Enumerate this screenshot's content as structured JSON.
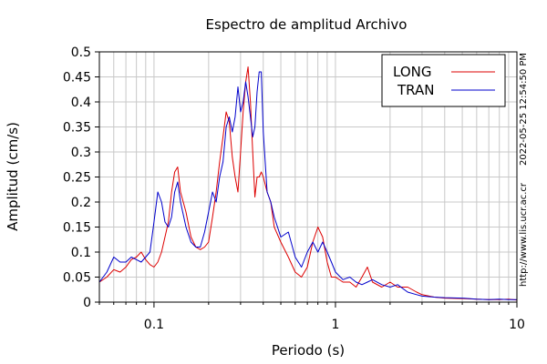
{
  "chart_data": {
    "type": "line",
    "title": "Espectro de amplitud Archivo",
    "xlabel": "Periodo (s)",
    "ylabel": "Amplitud (cm/s)",
    "x_scale": "log",
    "xlim": [
      0.05,
      10
    ],
    "ylim": [
      0,
      0.5
    ],
    "grid": true,
    "legend_position": "top-right",
    "x_ticks": [
      {
        "value": 0.1,
        "label": "0.1"
      },
      {
        "value": 1,
        "label": "1"
      },
      {
        "value": 10,
        "label": "10"
      }
    ],
    "y_ticks": [
      {
        "value": 0,
        "label": "0"
      },
      {
        "value": 0.05,
        "label": "0.05"
      },
      {
        "value": 0.1,
        "label": "0.1"
      },
      {
        "value": 0.15,
        "label": "0.15"
      },
      {
        "value": 0.2,
        "label": "0.2"
      },
      {
        "value": 0.25,
        "label": "0.25"
      },
      {
        "value": 0.3,
        "label": "0.3"
      },
      {
        "value": 0.35,
        "label": "0.35"
      },
      {
        "value": 0.4,
        "label": "0.4"
      },
      {
        "value": 0.45,
        "label": "0.45"
      },
      {
        "value": 0.5,
        "label": "0.5"
      }
    ],
    "series": [
      {
        "name": "LONG",
        "color": "#dd0000",
        "points": [
          [
            0.05,
            0.04
          ],
          [
            0.055,
            0.05
          ],
          [
            0.06,
            0.065
          ],
          [
            0.065,
            0.06
          ],
          [
            0.07,
            0.07
          ],
          [
            0.075,
            0.085
          ],
          [
            0.08,
            0.09
          ],
          [
            0.085,
            0.1
          ],
          [
            0.09,
            0.085
          ],
          [
            0.095,
            0.075
          ],
          [
            0.1,
            0.07
          ],
          [
            0.105,
            0.08
          ],
          [
            0.11,
            0.1
          ],
          [
            0.12,
            0.16
          ],
          [
            0.125,
            0.22
          ],
          [
            0.13,
            0.26
          ],
          [
            0.135,
            0.27
          ],
          [
            0.14,
            0.22
          ],
          [
            0.15,
            0.18
          ],
          [
            0.16,
            0.13
          ],
          [
            0.17,
            0.11
          ],
          [
            0.18,
            0.105
          ],
          [
            0.19,
            0.11
          ],
          [
            0.2,
            0.12
          ],
          [
            0.21,
            0.17
          ],
          [
            0.22,
            0.22
          ],
          [
            0.23,
            0.28
          ],
          [
            0.24,
            0.33
          ],
          [
            0.25,
            0.38
          ],
          [
            0.26,
            0.36
          ],
          [
            0.27,
            0.29
          ],
          [
            0.28,
            0.25
          ],
          [
            0.29,
            0.22
          ],
          [
            0.3,
            0.3
          ],
          [
            0.31,
            0.38
          ],
          [
            0.32,
            0.44
          ],
          [
            0.33,
            0.47
          ],
          [
            0.34,
            0.4
          ],
          [
            0.35,
            0.3
          ],
          [
            0.36,
            0.21
          ],
          [
            0.37,
            0.25
          ],
          [
            0.38,
            0.25
          ],
          [
            0.39,
            0.26
          ],
          [
            0.4,
            0.25
          ],
          [
            0.42,
            0.22
          ],
          [
            0.44,
            0.2
          ],
          [
            0.46,
            0.15
          ],
          [
            0.5,
            0.12
          ],
          [
            0.55,
            0.09
          ],
          [
            0.6,
            0.06
          ],
          [
            0.65,
            0.05
          ],
          [
            0.7,
            0.07
          ],
          [
            0.75,
            0.12
          ],
          [
            0.8,
            0.15
          ],
          [
            0.85,
            0.13
          ],
          [
            0.9,
            0.08
          ],
          [
            0.95,
            0.05
          ],
          [
            1.0,
            0.05
          ],
          [
            1.1,
            0.04
          ],
          [
            1.2,
            0.04
          ],
          [
            1.3,
            0.03
          ],
          [
            1.4,
            0.05
          ],
          [
            1.5,
            0.07
          ],
          [
            1.6,
            0.04
          ],
          [
            1.8,
            0.03
          ],
          [
            2.0,
            0.04
          ],
          [
            2.2,
            0.03
          ],
          [
            2.5,
            0.03
          ],
          [
            2.8,
            0.02
          ],
          [
            3.0,
            0.015
          ],
          [
            3.5,
            0.01
          ],
          [
            4.0,
            0.008
          ],
          [
            5.0,
            0.007
          ],
          [
            6.0,
            0.006
          ],
          [
            7.0,
            0.005
          ],
          [
            8.0,
            0.005
          ],
          [
            9.0,
            0.006
          ],
          [
            10.0,
            0.004
          ]
        ]
      },
      {
        "name": "TRAN",
        "color": "#0000cc",
        "points": [
          [
            0.05,
            0.04
          ],
          [
            0.055,
            0.06
          ],
          [
            0.06,
            0.09
          ],
          [
            0.065,
            0.08
          ],
          [
            0.07,
            0.08
          ],
          [
            0.075,
            0.09
          ],
          [
            0.08,
            0.085
          ],
          [
            0.085,
            0.08
          ],
          [
            0.09,
            0.09
          ],
          [
            0.095,
            0.1
          ],
          [
            0.1,
            0.16
          ],
          [
            0.105,
            0.22
          ],
          [
            0.11,
            0.2
          ],
          [
            0.115,
            0.16
          ],
          [
            0.12,
            0.15
          ],
          [
            0.125,
            0.17
          ],
          [
            0.13,
            0.22
          ],
          [
            0.135,
            0.24
          ],
          [
            0.14,
            0.2
          ],
          [
            0.15,
            0.15
          ],
          [
            0.16,
            0.12
          ],
          [
            0.17,
            0.11
          ],
          [
            0.18,
            0.11
          ],
          [
            0.19,
            0.14
          ],
          [
            0.2,
            0.18
          ],
          [
            0.21,
            0.22
          ],
          [
            0.22,
            0.2
          ],
          [
            0.23,
            0.25
          ],
          [
            0.24,
            0.28
          ],
          [
            0.25,
            0.35
          ],
          [
            0.26,
            0.37
          ],
          [
            0.27,
            0.34
          ],
          [
            0.28,
            0.37
          ],
          [
            0.29,
            0.43
          ],
          [
            0.3,
            0.38
          ],
          [
            0.31,
            0.4
          ],
          [
            0.32,
            0.44
          ],
          [
            0.33,
            0.41
          ],
          [
            0.34,
            0.37
          ],
          [
            0.35,
            0.33
          ],
          [
            0.36,
            0.35
          ],
          [
            0.37,
            0.42
          ],
          [
            0.38,
            0.46
          ],
          [
            0.39,
            0.46
          ],
          [
            0.4,
            0.34
          ],
          [
            0.42,
            0.22
          ],
          [
            0.44,
            0.2
          ],
          [
            0.46,
            0.17
          ],
          [
            0.5,
            0.13
          ],
          [
            0.55,
            0.14
          ],
          [
            0.6,
            0.09
          ],
          [
            0.65,
            0.07
          ],
          [
            0.7,
            0.1
          ],
          [
            0.75,
            0.12
          ],
          [
            0.8,
            0.1
          ],
          [
            0.85,
            0.12
          ],
          [
            0.9,
            0.1
          ],
          [
            0.95,
            0.08
          ],
          [
            1.0,
            0.06
          ],
          [
            1.1,
            0.045
          ],
          [
            1.2,
            0.05
          ],
          [
            1.3,
            0.04
          ],
          [
            1.4,
            0.035
          ],
          [
            1.5,
            0.04
          ],
          [
            1.6,
            0.045
          ],
          [
            1.8,
            0.035
          ],
          [
            2.0,
            0.03
          ],
          [
            2.2,
            0.035
          ],
          [
            2.5,
            0.02
          ],
          [
            2.8,
            0.015
          ],
          [
            3.0,
            0.012
          ],
          [
            3.5,
            0.01
          ],
          [
            4.0,
            0.009
          ],
          [
            5.0,
            0.008
          ],
          [
            6.0,
            0.006
          ],
          [
            7.0,
            0.005
          ],
          [
            8.0,
            0.006
          ],
          [
            9.0,
            0.005
          ],
          [
            10.0,
            0.005
          ]
        ]
      }
    ],
    "side_labels": {
      "timestamp": "2022-05-25 12:54:50 PM",
      "url": "http://www.lis.ucr.ac.cr"
    }
  }
}
